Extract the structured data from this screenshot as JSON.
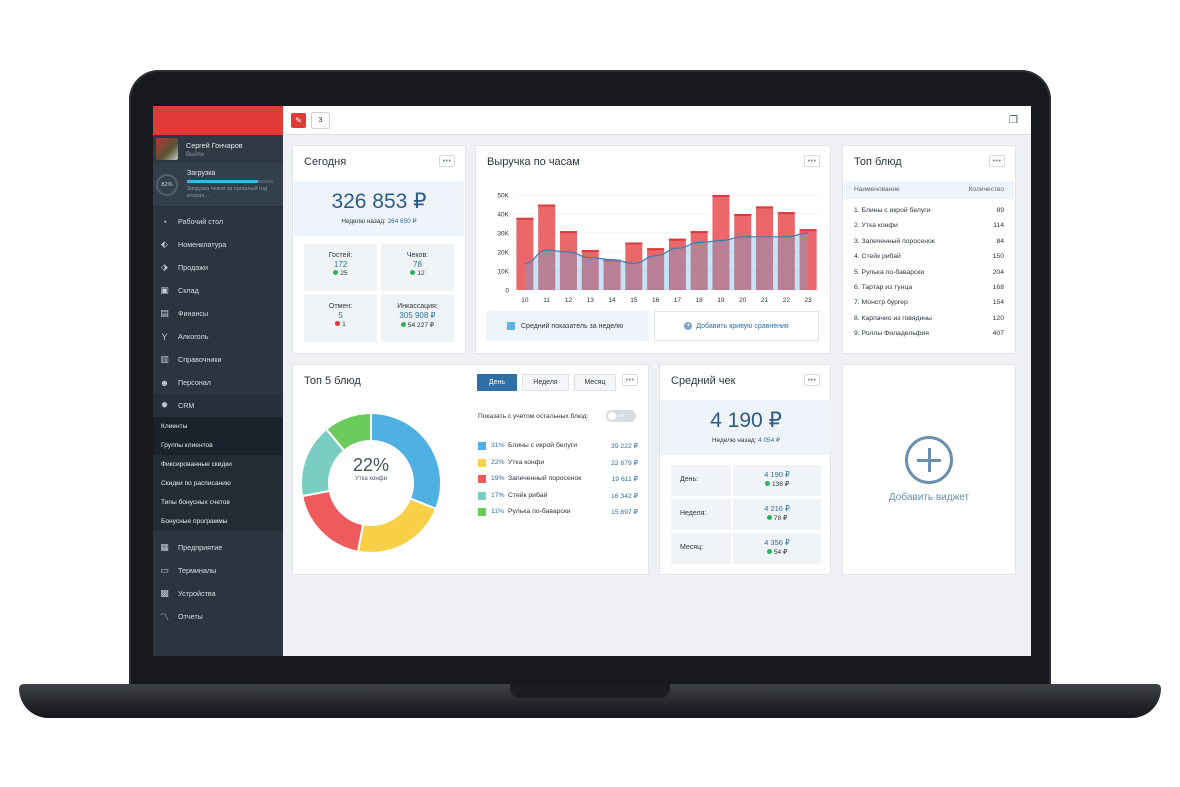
{
  "user": {
    "name": "Сергей Гончаров",
    "logout": "Выйти"
  },
  "loading": {
    "percent": "82%",
    "progress": 0.82,
    "title": "Загрузка",
    "desc": "Загрузка чеков за прошлый год вторая..."
  },
  "nav": [
    {
      "label": "Рабочий стол",
      "icon": "dashboard-icon",
      "glyph": "◔"
    },
    {
      "label": "Номенклатура",
      "icon": "tag-icon",
      "glyph": "⬖"
    },
    {
      "label": "Продажи",
      "icon": "price-tag-icon",
      "glyph": "⬗"
    },
    {
      "label": "Склад",
      "icon": "warehouse-icon",
      "glyph": "▣"
    },
    {
      "label": "Финансы",
      "icon": "finance-icon",
      "glyph": "▤"
    },
    {
      "label": "Алкоголь",
      "icon": "glass-icon",
      "glyph": "Y"
    },
    {
      "label": "Справочники",
      "icon": "book-icon",
      "glyph": "▥"
    },
    {
      "label": "Персонал",
      "icon": "people-icon",
      "glyph": "☻"
    },
    {
      "label": "CRM",
      "icon": "gear-icon",
      "glyph": "✹"
    }
  ],
  "crm_sub": [
    "Клиенты",
    "Группы клиентов",
    "Фиксированные скидки",
    "Скидки по расписанию",
    "Типы бонусных счетов",
    "Бонусные программы"
  ],
  "nav_bottom": [
    {
      "label": "Предприятие",
      "icon": "store-icon",
      "glyph": "▦"
    },
    {
      "label": "Терминалы",
      "icon": "terminal-icon",
      "glyph": "▭"
    },
    {
      "label": "Устройства",
      "icon": "printer-icon",
      "glyph": "▩"
    },
    {
      "label": "Отчеты",
      "icon": "chart-line-icon",
      "glyph": "〽"
    }
  ],
  "topbar": {
    "tag_count": "3"
  },
  "today": {
    "title": "Сегодня",
    "total": "326 853 ₽",
    "week_ago_label": "Неделю назад:",
    "week_ago_value": "264 650 ₽",
    "guests": {
      "label": "Гостей:",
      "value": "172",
      "delta": "25"
    },
    "checks": {
      "label": "Чеков:",
      "value": "78",
      "delta": "12"
    },
    "cancels": {
      "label": "Отмен:",
      "value": "5",
      "delta": "1"
    },
    "cash": {
      "label": "Инкассация:",
      "value": "305 908 ₽",
      "delta": "54 227 ₽"
    }
  },
  "revenue": {
    "title": "Выручка по часам",
    "legend": "Средний показатель за неделю",
    "add_curve": "Добавить кривую сравнения"
  },
  "chart_data": {
    "type": "bar",
    "categories": [
      "10",
      "11",
      "12",
      "13",
      "14",
      "15",
      "16",
      "17",
      "18",
      "19",
      "20",
      "21",
      "22",
      "23"
    ],
    "y_ticks": [
      "0",
      "10K",
      "20K",
      "30K",
      "40K",
      "50K"
    ],
    "ylim": [
      0,
      50000
    ],
    "series": [
      {
        "name": "",
        "type": "bar",
        "color": "#e8575a",
        "values": [
          38000,
          45000,
          31000,
          21000,
          16000,
          25000,
          22000,
          27000,
          31000,
          50000,
          40000,
          44000,
          41000,
          32000
        ]
      },
      {
        "name": "Средний показатель за неделю",
        "type": "area",
        "color": "#5eb0e5",
        "values": [
          14000,
          21000,
          20000,
          17000,
          16000,
          14000,
          18000,
          22000,
          25000,
          26000,
          28000,
          28000,
          28000,
          30000
        ]
      }
    ]
  },
  "top_dishes": {
    "title": "Топ блюд",
    "col_name": "Наименование",
    "col_qty": "Количество",
    "rows": [
      {
        "name": "1. Блины с икрой белуги",
        "qty": "89"
      },
      {
        "name": "2. Утка конфи",
        "qty": "114"
      },
      {
        "name": "3. Запеченный поросенок",
        "qty": "84"
      },
      {
        "name": "4. Стейк рибай",
        "qty": "150"
      },
      {
        "name": "5. Рулька по-баварски",
        "qty": "204"
      },
      {
        "name": "6. Тартар из тунца",
        "qty": "168"
      },
      {
        "name": "7. Монстр бургер",
        "qty": "154"
      },
      {
        "name": "8. Карпачио из говядины",
        "qty": "120"
      },
      {
        "name": "9. Роллы Филадельфия",
        "qty": "407"
      }
    ]
  },
  "top5": {
    "title": "Топ 5 блюд",
    "period_day": "День",
    "period_week": "Неделя",
    "period_month": "Месяц",
    "toggle_label": "Показать с учетом остальных блюд:",
    "toggle_state": "нет",
    "center_pct": "22%",
    "center_name": "Утка конфи",
    "items": [
      {
        "pct": "31%",
        "name": "Блины с икрой белуги",
        "amount": "39 222 ₽",
        "color": "#4fb0e4",
        "share": 31
      },
      {
        "pct": "22%",
        "name": "Утка конфи",
        "amount": "22 879 ₽",
        "color": "#f8d048",
        "share": 22
      },
      {
        "pct": "19%",
        "name": "Запеченный поросенок",
        "amount": "19 611 ₽",
        "color": "#ee5b5c",
        "share": 19
      },
      {
        "pct": "17%",
        "name": "Стейк рибай",
        "amount": "16 342 ₽",
        "color": "#79cdc2",
        "share": 17
      },
      {
        "pct": "11%",
        "name": "Рулька по-баварски",
        "amount": "15 897 ₽",
        "color": "#6acb5a",
        "share": 11
      }
    ]
  },
  "avg_check": {
    "title": "Средний чек",
    "value": "4 190 ₽",
    "week_ago_label": "Неделю назад:",
    "week_ago_value": "4 054 ₽",
    "rows": [
      {
        "label": "День:",
        "value": "4 190 ₽",
        "delta": "136 ₽"
      },
      {
        "label": "Неделя:",
        "value": "4 216 ₽",
        "delta": "78 ₽"
      },
      {
        "label": "Месяц:",
        "value": "4 356 ₽",
        "delta": "54 ₽"
      }
    ]
  },
  "add_widget": {
    "label": "Добавить виджет"
  }
}
